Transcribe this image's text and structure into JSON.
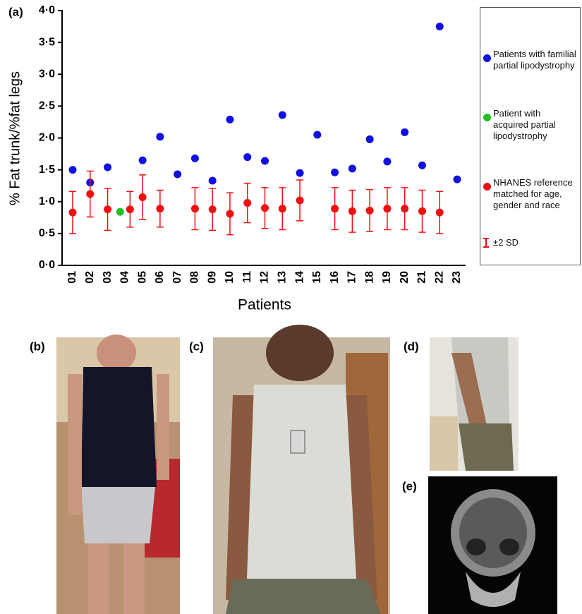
{
  "chart_data": {
    "type": "scatter",
    "panel_label": "(a)",
    "y_label": "% Fat trunk/%fat legs",
    "x_label": "Patients",
    "categories": [
      "01",
      "02",
      "03",
      "04",
      "05",
      "06",
      "07",
      "08",
      "09",
      "10",
      "11",
      "12",
      "13",
      "14",
      "15",
      "16",
      "17",
      "18",
      "19",
      "20",
      "21",
      "22",
      "23"
    ],
    "ylim": [
      0,
      4
    ],
    "yticks": [
      {
        "value": 0,
        "label": "0·0"
      },
      {
        "value": 0.5,
        "label": "0·5"
      },
      {
        "value": 1,
        "label": "1·0"
      },
      {
        "value": 1.5,
        "label": "1·5"
      },
      {
        "value": 2,
        "label": "2·0"
      },
      {
        "value": 2.5,
        "label": "2·5"
      },
      {
        "value": 3,
        "label": "3·0"
      },
      {
        "value": 3.5,
        "label": "3·5"
      },
      {
        "value": 4,
        "label": "4·0"
      }
    ],
    "series": [
      {
        "name": "Patients with familial partial lipodystrophy",
        "color": "#1010e0",
        "values": [
          1.5,
          1.3,
          1.54,
          null,
          1.65,
          2.02,
          1.43,
          1.68,
          1.33,
          2.29,
          1.7,
          1.64,
          2.36,
          1.45,
          2.05,
          1.46,
          1.52,
          1.98,
          1.63,
          2.09,
          1.57,
          3.75,
          1.35
        ]
      },
      {
        "name": "Patient with acquired partial lipodystrophy",
        "color": "#22c022",
        "values": [
          null,
          null,
          null,
          0.84,
          null,
          null,
          null,
          null,
          null,
          null,
          null,
          null,
          null,
          null,
          null,
          null,
          null,
          null,
          null,
          null,
          null,
          null,
          null
        ]
      },
      {
        "name": "NHANES reference matched for age, gender and race",
        "color": "#f01010",
        "values": [
          0.83,
          1.12,
          0.88,
          0.88,
          1.07,
          0.89,
          null,
          0.89,
          0.88,
          0.81,
          0.98,
          0.9,
          0.89,
          1.02,
          null,
          0.89,
          0.85,
          0.86,
          0.89,
          0.89,
          0.85,
          0.83,
          null
        ],
        "errors": [
          0.33,
          0.36,
          0.33,
          0.28,
          0.35,
          0.29,
          null,
          0.33,
          0.33,
          0.33,
          0.31,
          0.32,
          0.33,
          0.32,
          null,
          0.33,
          0.33,
          0.33,
          0.33,
          0.33,
          0.33,
          0.33,
          null
        ]
      }
    ],
    "error_label": "±2 SD"
  },
  "panels": [
    {
      "label": "(b)"
    },
    {
      "label": "(c)"
    },
    {
      "label": "(d)"
    },
    {
      "label": "(e)"
    }
  ]
}
